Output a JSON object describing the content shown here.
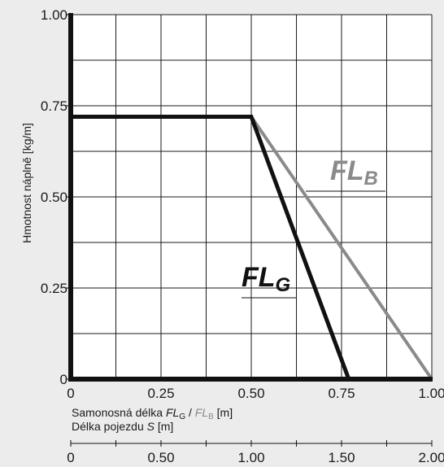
{
  "chart_data": {
    "type": "line",
    "ylabel": "Hmotnost náplně [kg/m]",
    "xlabel_parts": [
      "Samonosná délka ",
      "FL",
      "G",
      " / ",
      "FL",
      "B",
      " [m]"
    ],
    "xlabel2_parts": [
      "Délka pojezdu ",
      "S",
      " [m]"
    ],
    "xlim": [
      0,
      1.0
    ],
    "ylim": [
      0,
      1.0
    ],
    "grid": true,
    "x_ticks": [
      "0",
      "0.25",
      "0.50",
      "0.75",
      "1.00"
    ],
    "x_tick_values": [
      0,
      0.25,
      0.5,
      0.75,
      1.0
    ],
    "y_ticks": [
      "0",
      "0.25",
      "0.50",
      "0.75",
      "1.00"
    ],
    "y_tick_values": [
      0,
      0.25,
      0.5,
      0.75,
      1.0
    ],
    "secondary_x_ticks": [
      "0",
      "0.50",
      "1.00",
      "1.50",
      "2.00"
    ],
    "secondary_x_tick_values": [
      0,
      0.5,
      1.0,
      1.5,
      2.0
    ],
    "secondary_xlim": [
      0,
      2.0
    ],
    "series": [
      {
        "name_main": "FL",
        "name_sub": "B",
        "color": "#8a8a8a",
        "x": [
          0,
          0.5,
          1.0
        ],
        "y": [
          0.72,
          0.72,
          0
        ]
      },
      {
        "name_main": "FL",
        "name_sub": "G",
        "color": "#111111",
        "x": [
          0,
          0.5,
          0.77
        ],
        "y": [
          0.72,
          0.72,
          0
        ]
      }
    ]
  }
}
